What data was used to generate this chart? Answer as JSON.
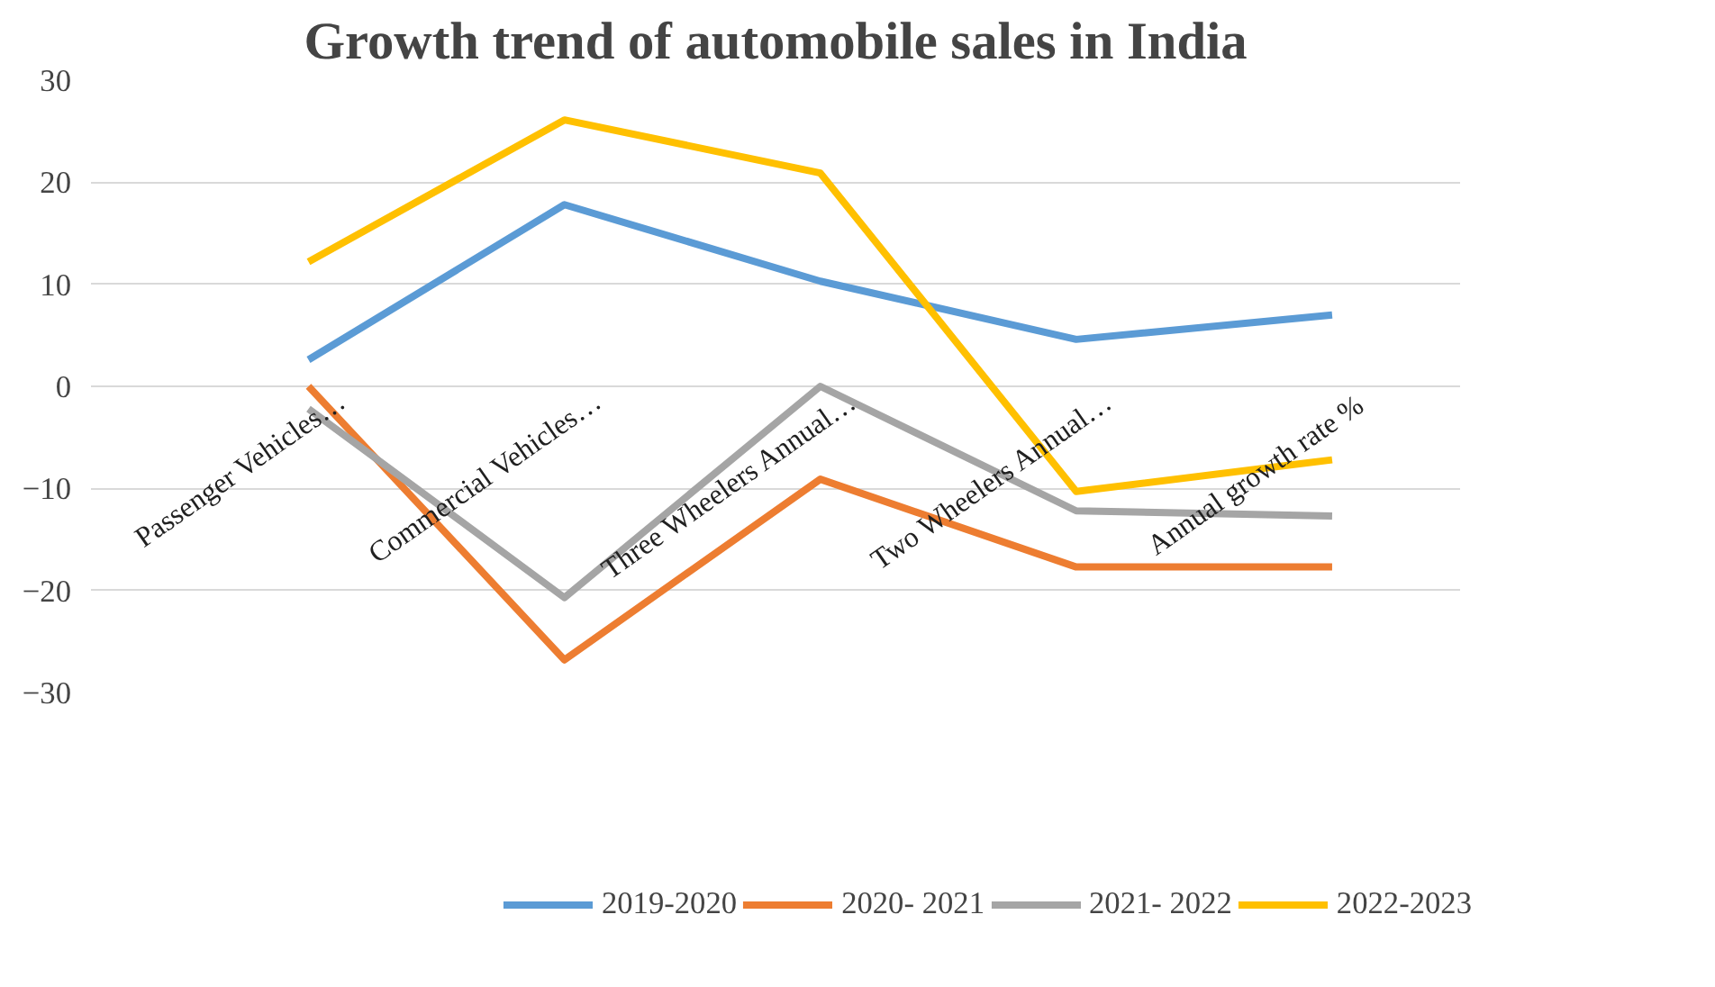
{
  "chart_data": {
    "type": "line",
    "title": "Growth trend of automobile sales in India",
    "categories": [
      "Passenger Vehicles…",
      "Commercial Vehicles…",
      "Three Wheelers Annual…",
      "Two Wheelers Annual…",
      "Annual  growth rate %"
    ],
    "series": [
      {
        "name": "2019-2020",
        "color": "#5b9bd5",
        "values": [
          2.6,
          17.8,
          10.3,
          4.6,
          7.0
        ]
      },
      {
        "name": "2020- 2021",
        "color": "#ed7d31",
        "values": [
          0,
          -26.8,
          -9.1,
          -17.7,
          -17.7
        ]
      },
      {
        "name": "2021- 2022",
        "color": "#a5a5a5",
        "values": [
          -2.2,
          -20.7,
          0,
          -12.2,
          -12.7
        ]
      },
      {
        "name": "2022-2023",
        "color": "#ffc000",
        "values": [
          12.2,
          26.1,
          20.9,
          -10.3,
          -7.2
        ]
      }
    ],
    "ylim": [
      -30,
      30
    ],
    "yticks": [
      -30,
      -20,
      -10,
      0,
      10,
      20,
      30
    ],
    "grid": "y",
    "legend": "bottom",
    "marker": "none",
    "line_style": "solid"
  }
}
